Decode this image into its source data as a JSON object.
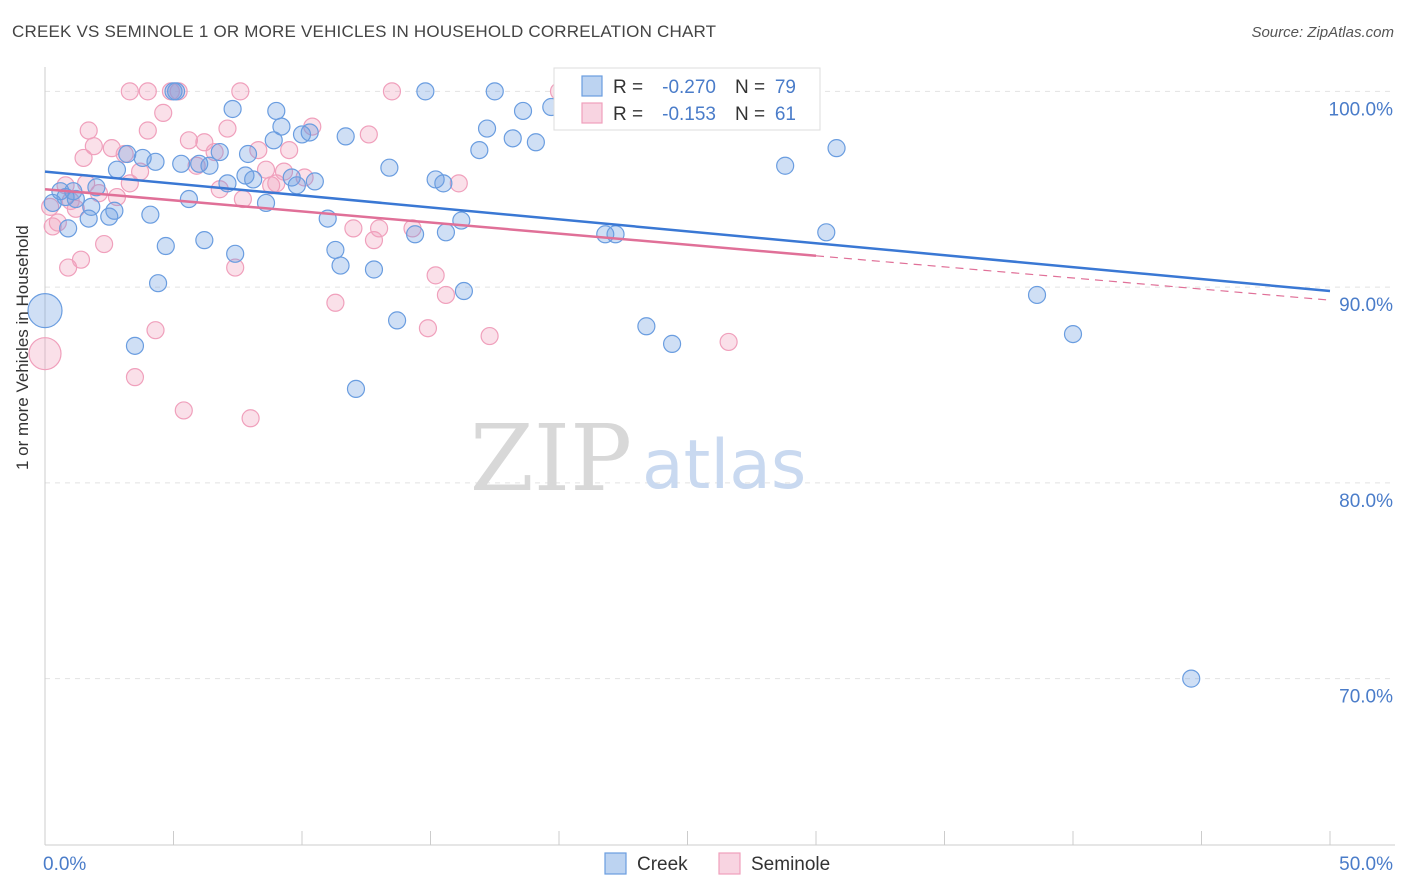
{
  "title": "CREEK VS SEMINOLE 1 OR MORE VEHICLES IN HOUSEHOLD CORRELATION CHART",
  "source": "Source: ZipAtlas.com",
  "watermark": {
    "zip": "ZIP",
    "atlas": "atlas"
  },
  "colors": {
    "creek": "#6a9de0",
    "creek_line": "#3a78d4",
    "seminole": "#f0a0bc",
    "seminole_line": "#e07098",
    "tick_label": "#4a7cc9",
    "axis_label": "#333333"
  },
  "chart_data": {
    "type": "scatter",
    "ylabel": "1 or more Vehicles in Household",
    "xlim": [
      0,
      50
    ],
    "ylim": [
      61.5,
      101.5
    ],
    "x_tick_labels": [
      "0.0%",
      "50.0%"
    ],
    "y_ticks": [
      70,
      80,
      90,
      100
    ],
    "y_tick_labels": [
      "70.0%",
      "80.0%",
      "90.0%",
      "100.0%"
    ],
    "grid": true,
    "legend": {
      "placement": "top-center",
      "rows": [
        {
          "r_label": "R =",
          "r_value": "-0.270",
          "n_label": "N =",
          "n_value": "79"
        },
        {
          "r_label": "R =",
          "r_value": "-0.153",
          "n_label": "N =",
          "n_value": "61"
        }
      ]
    },
    "series": [
      {
        "name": "Creek",
        "trend": {
          "x": [
            0,
            50
          ],
          "y": [
            95.9,
            89.8
          ]
        },
        "points": [
          [
            0.0,
            88.8
          ],
          [
            0.3,
            94.3
          ],
          [
            0.6,
            94.9
          ],
          [
            0.8,
            94.6
          ],
          [
            1.1,
            94.9
          ],
          [
            1.2,
            94.5
          ],
          [
            1.7,
            93.5
          ],
          [
            1.8,
            94.1
          ],
          [
            0.9,
            93.0
          ],
          [
            2.5,
            93.6
          ],
          [
            2.8,
            96.0
          ],
          [
            3.2,
            96.8
          ],
          [
            3.8,
            96.6
          ],
          [
            4.3,
            96.4
          ],
          [
            4.7,
            92.1
          ],
          [
            5.1,
            100.0
          ],
          [
            5.3,
            96.3
          ],
          [
            5.6,
            94.5
          ],
          [
            6.2,
            92.4
          ],
          [
            6.4,
            96.2
          ],
          [
            6.8,
            96.9
          ],
          [
            7.1,
            95.3
          ],
          [
            7.4,
            91.7
          ],
          [
            7.8,
            95.7
          ],
          [
            7.9,
            96.8
          ],
          [
            8.1,
            95.5
          ],
          [
            8.6,
            94.3
          ],
          [
            8.9,
            97.5
          ],
          [
            9.2,
            98.2
          ],
          [
            9.6,
            95.6
          ],
          [
            9.8,
            95.2
          ],
          [
            10.3,
            97.9
          ],
          [
            10.5,
            95.4
          ],
          [
            11.0,
            93.5
          ],
          [
            11.3,
            91.9
          ],
          [
            11.5,
            91.1
          ],
          [
            11.7,
            97.7
          ],
          [
            12.1,
            84.8
          ],
          [
            12.8,
            90.9
          ],
          [
            13.4,
            96.1
          ],
          [
            13.7,
            88.3
          ],
          [
            14.4,
            92.7
          ],
          [
            14.8,
            100.0
          ],
          [
            15.2,
            95.5
          ],
          [
            15.5,
            95.3
          ],
          [
            15.6,
            92.8
          ],
          [
            16.3,
            89.8
          ],
          [
            16.9,
            97.0
          ],
          [
            17.2,
            98.1
          ],
          [
            17.5,
            100.0
          ],
          [
            18.2,
            97.6
          ],
          [
            18.6,
            99.0
          ],
          [
            19.1,
            97.4
          ],
          [
            19.7,
            99.2
          ],
          [
            21.2,
            98.9
          ],
          [
            21.8,
            92.7
          ],
          [
            21.3,
            100.0
          ],
          [
            22.2,
            92.7
          ],
          [
            23.4,
            88.0
          ],
          [
            24.4,
            87.1
          ],
          [
            24.3,
            100.0
          ],
          [
            26.8,
            100.0
          ],
          [
            28.8,
            96.2
          ],
          [
            30.4,
            92.8
          ],
          [
            30.8,
            97.1
          ],
          [
            38.6,
            89.6
          ],
          [
            40.0,
            87.6
          ],
          [
            44.6,
            70.0
          ],
          [
            2.0,
            95.1
          ],
          [
            4.1,
            93.7
          ],
          [
            5.0,
            100.0
          ],
          [
            6.0,
            96.3
          ],
          [
            7.3,
            99.1
          ],
          [
            9.0,
            99.0
          ],
          [
            3.5,
            87.0
          ],
          [
            4.4,
            90.2
          ],
          [
            10.0,
            97.8
          ],
          [
            16.2,
            93.4
          ],
          [
            2.7,
            93.9
          ]
        ]
      },
      {
        "name": "Seminole",
        "trend": {
          "x": [
            0,
            30
          ],
          "y": [
            95.0,
            91.6
          ]
        },
        "points": [
          [
            0.0,
            86.6
          ],
          [
            0.3,
            93.1
          ],
          [
            0.5,
            93.3
          ],
          [
            0.8,
            95.2
          ],
          [
            0.9,
            91.0
          ],
          [
            1.0,
            94.4
          ],
          [
            1.2,
            94.0
          ],
          [
            1.4,
            91.4
          ],
          [
            1.5,
            96.6
          ],
          [
            1.7,
            98.0
          ],
          [
            1.9,
            97.2
          ],
          [
            2.1,
            94.8
          ],
          [
            2.3,
            92.2
          ],
          [
            2.6,
            97.1
          ],
          [
            2.8,
            94.6
          ],
          [
            3.1,
            96.8
          ],
          [
            3.3,
            95.3
          ],
          [
            3.5,
            85.4
          ],
          [
            3.7,
            95.9
          ],
          [
            4.0,
            98.0
          ],
          [
            4.3,
            87.8
          ],
          [
            4.6,
            98.9
          ],
          [
            4.9,
            100.0
          ],
          [
            5.2,
            100.0
          ],
          [
            5.4,
            83.7
          ],
          [
            5.6,
            97.5
          ],
          [
            5.9,
            96.2
          ],
          [
            6.2,
            97.4
          ],
          [
            6.6,
            96.9
          ],
          [
            6.8,
            95.0
          ],
          [
            7.1,
            98.1
          ],
          [
            7.4,
            91.0
          ],
          [
            7.6,
            100.0
          ],
          [
            7.7,
            94.5
          ],
          [
            8.0,
            83.3
          ],
          [
            8.3,
            97.0
          ],
          [
            8.6,
            96.0
          ],
          [
            8.8,
            95.2
          ],
          [
            9.0,
            95.3
          ],
          [
            9.3,
            95.9
          ],
          [
            9.5,
            97.0
          ],
          [
            10.1,
            95.6
          ],
          [
            10.4,
            98.2
          ],
          [
            11.3,
            89.2
          ],
          [
            12.0,
            93.0
          ],
          [
            12.6,
            97.8
          ],
          [
            12.8,
            92.4
          ],
          [
            13.0,
            93.0
          ],
          [
            13.5,
            100.0
          ],
          [
            14.3,
            93.0
          ],
          [
            14.9,
            87.9
          ],
          [
            15.2,
            90.6
          ],
          [
            15.6,
            89.6
          ],
          [
            16.1,
            95.3
          ],
          [
            17.3,
            87.5
          ],
          [
            3.3,
            100.0
          ],
          [
            4.0,
            100.0
          ],
          [
            0.2,
            94.1
          ],
          [
            1.6,
            95.3
          ],
          [
            26.6,
            87.2
          ],
          [
            20.0,
            100.0
          ]
        ]
      }
    ]
  }
}
